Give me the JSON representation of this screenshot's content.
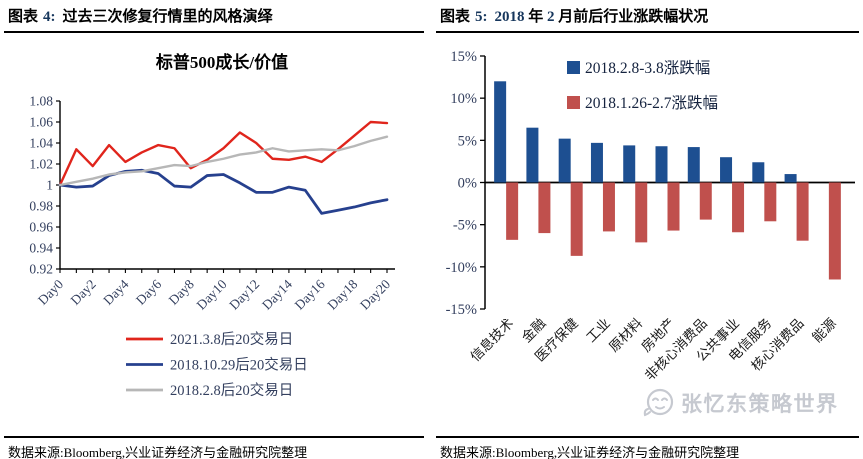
{
  "figures": {
    "left": {
      "fig_label": "图表",
      "fig_num": "4:",
      "title_parts": [
        {
          "t": "过去三次修复行情里的风格演绎",
          "num": false
        }
      ],
      "source": "数据来源:Bloomberg,兴业证券经济与金融研究院整理"
    },
    "right": {
      "fig_label": "图表",
      "fig_num": "5:",
      "title_parts": [
        {
          "t": "2018",
          "num": true
        },
        {
          "t": " 年 ",
          "num": false
        },
        {
          "t": "2",
          "num": true
        },
        {
          "t": " 月前后行业涨跌幅状况",
          "num": false
        }
      ],
      "source": "数据来源:Bloomberg,兴业证券经济与金融研究院整理"
    }
  },
  "watermark": {
    "text": "张忆东策略世界"
  },
  "colors": {
    "accent_number": "#16365c",
    "axis_text": "#333f5e",
    "category_text": "#1a1a1a",
    "legend_text_dark": "#15233f",
    "watermark_gray": "#c6c9d0"
  },
  "chart_data": [
    {
      "type": "line",
      "title": "标普500成长/价值",
      "xlabel": "",
      "ylabel": "",
      "x_range": [
        0,
        20
      ],
      "x_tick_labels": [
        "Day0",
        "Day2",
        "Day4",
        "Day6",
        "Day8",
        "Day10",
        "Day12",
        "Day14",
        "Day16",
        "Day18",
        "Day20"
      ],
      "ylim": [
        0.92,
        1.08
      ],
      "y_tick_step": 0.02,
      "y_tick_labels": [
        "0.92",
        "0.94",
        "0.96",
        "0.98",
        "1",
        "1.02",
        "1.04",
        "1.06",
        "1.08"
      ],
      "grid": false,
      "legend_position": "bottom",
      "series": [
        {
          "name": "2021.3.8后20交易日",
          "color": "#e0251c",
          "values": [
            1.0,
            1.034,
            1.018,
            1.038,
            1.022,
            1.031,
            1.038,
            1.035,
            1.016,
            1.024,
            1.035,
            1.05,
            1.04,
            1.025,
            1.024,
            1.027,
            1.022,
            1.034,
            1.047,
            1.06,
            1.059
          ]
        },
        {
          "name": "2018.10.29后20交易日",
          "color": "#26408e",
          "values": [
            1.0,
            0.998,
            0.999,
            1.009,
            1.013,
            1.014,
            1.011,
            0.999,
            0.998,
            1.009,
            1.01,
            1.002,
            0.993,
            0.993,
            0.998,
            0.995,
            0.973,
            0.976,
            0.979,
            0.983,
            0.986
          ]
        },
        {
          "name": "2018.2.8后20交易日",
          "color": "#b7b7b7",
          "values": [
            1.0,
            1.003,
            1.006,
            1.01,
            1.012,
            1.013,
            1.016,
            1.019,
            1.018,
            1.022,
            1.025,
            1.029,
            1.031,
            1.035,
            1.032,
            1.033,
            1.034,
            1.033,
            1.037,
            1.042,
            1.046
          ]
        }
      ]
    },
    {
      "type": "bar",
      "title": "",
      "categories": [
        "信息技术",
        "金融",
        "医疗保健",
        "工业",
        "原材料",
        "房地产",
        "非核心消费品",
        "公共事业",
        "电信服务",
        "核心消费品",
        "能源"
      ],
      "ylim": [
        -15,
        15
      ],
      "y_tick_step": 5,
      "y_tick_labels": [
        "15%",
        "10%",
        "5%",
        "0%",
        "-5%",
        "-10%",
        "-15%"
      ],
      "grid": false,
      "legend_position": "inside-top",
      "series": [
        {
          "name": "2018.2.8-3.8涨跌幅",
          "color": "#1d4f91",
          "values": [
            12.0,
            6.5,
            5.2,
            4.7,
            4.4,
            4.3,
            4.2,
            3.0,
            2.4,
            1.0,
            0.0
          ]
        },
        {
          "name": "2018.1.26-2.7涨跌幅",
          "color": "#c0504d",
          "values": [
            -6.8,
            -6.0,
            -8.7,
            -5.8,
            -7.1,
            -5.7,
            -4.4,
            -5.9,
            -4.6,
            -6.9,
            -11.5
          ]
        }
      ]
    }
  ]
}
